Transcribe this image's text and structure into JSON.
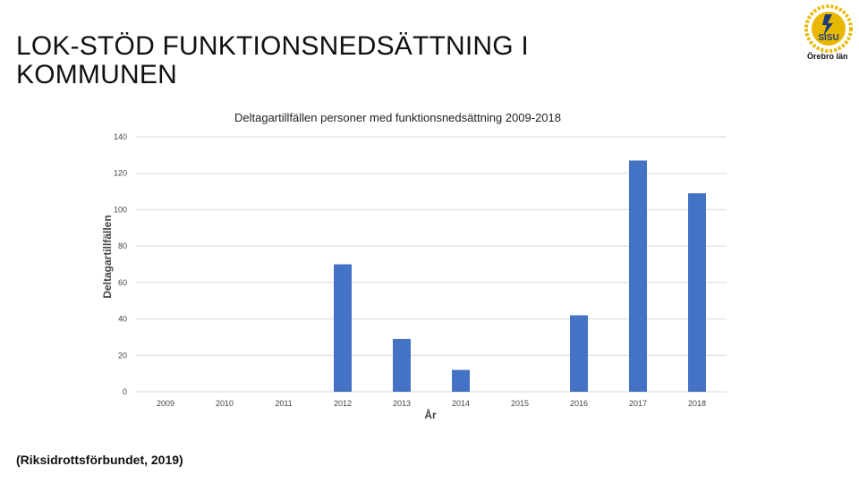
{
  "slide": {
    "title": "LOK-STÖD FUNKTIONSNEDSÄTTNING I KOMMUNEN",
    "source": "(Riksidrottsförbundet, 2019)"
  },
  "logo": {
    "icon": "sisu-laurel-logo",
    "text": "SISU",
    "caption": "Örebro län",
    "colors": {
      "gold": "#E8B800",
      "blue": "#1E3C78"
    }
  },
  "chart_data": {
    "type": "bar",
    "title": "Deltagartillfällen personer med funktionsnedsättning 2009-2018",
    "xlabel": "År",
    "ylabel": "Deltagartillfällen",
    "categories": [
      "2009",
      "2010",
      "2011",
      "2012",
      "2013",
      "2014",
      "2015",
      "2016",
      "2017",
      "2018"
    ],
    "values": [
      0,
      0,
      0,
      70,
      29,
      12,
      0,
      42,
      127,
      109
    ],
    "ylim": [
      0,
      140
    ],
    "yticks": [
      0,
      20,
      40,
      60,
      80,
      100,
      120,
      140
    ],
    "grid": true,
    "legend": "none",
    "bar_color": "#4472C4"
  }
}
